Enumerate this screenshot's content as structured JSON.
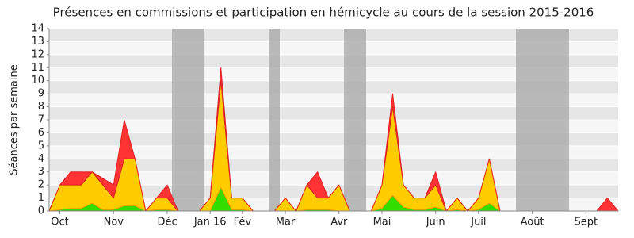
{
  "chart_data": {
    "type": "area",
    "stacked": true,
    "title": "Présences en commissions et participation en hémicycle au cours de la session 2015-2016",
    "ylabel": "Séances par semaine",
    "categories": [
      null,
      "Oct",
      null,
      null,
      null,
      null,
      "Nov",
      null,
      null,
      null,
      null,
      "Déc",
      null,
      null,
      null,
      "Jan 16",
      null,
      null,
      "Fév",
      null,
      null,
      null,
      "Mar",
      null,
      null,
      null,
      null,
      "Avr",
      null,
      null,
      null,
      "Mai",
      null,
      null,
      null,
      null,
      "Juin",
      null,
      null,
      null,
      "Juil",
      null,
      null,
      null,
      null,
      "Août",
      null,
      null,
      null,
      null,
      "Sept",
      null,
      null,
      null
    ],
    "series": [
      {
        "color": "#33dd00",
        "values": [
          0,
          0.1,
          0.2,
          0.2,
          0.6,
          0.1,
          0.1,
          0.4,
          0.4,
          0,
          0.1,
          0.1,
          0,
          0,
          0,
          0,
          1.8,
          0.1,
          0.1,
          0,
          0,
          0,
          0,
          0,
          0.1,
          0.1,
          0.1,
          0,
          0,
          0,
          0,
          0.2,
          1.2,
          0.3,
          0.1,
          0.1,
          0.3,
          0,
          0.1,
          0,
          0.1,
          0.6,
          0,
          0,
          0,
          0,
          0,
          0,
          0,
          0,
          0,
          0,
          0,
          0
        ]
      },
      {
        "color": "#ffcc00",
        "values": [
          0,
          1.9,
          1.8,
          1.8,
          2.4,
          1.9,
          0.9,
          3.6,
          3.6,
          0,
          0.9,
          0.9,
          0,
          0,
          0,
          1,
          8.2,
          0.9,
          0.9,
          0,
          0,
          0,
          1,
          0,
          1.9,
          0.9,
          0.9,
          2,
          0,
          0,
          0,
          1.8,
          6.8,
          1.7,
          0.9,
          0.9,
          1.7,
          0,
          0.9,
          0,
          0.9,
          3.4,
          0,
          0,
          0,
          0,
          0,
          0,
          0,
          0,
          0,
          0,
          0,
          0
        ]
      },
      {
        "color": "#ff3333",
        "values": [
          0,
          0,
          1,
          1,
          0,
          0.5,
          1,
          3,
          0,
          0,
          0,
          1,
          0,
          0,
          0,
          0,
          1,
          0,
          0,
          0,
          0,
          0,
          0,
          0,
          0,
          2,
          0,
          0,
          0,
          0,
          0,
          0,
          1,
          0,
          0,
          0,
          1,
          0,
          0,
          0,
          0,
          0,
          0,
          0,
          0,
          0,
          0,
          0,
          0,
          0,
          0,
          0,
          1,
          0
        ]
      }
    ],
    "ylim": [
      0,
      14
    ],
    "yticks": [
      0,
      1,
      2,
      3,
      4,
      5,
      6,
      7,
      8,
      9,
      10,
      11,
      12,
      13,
      14
    ],
    "grid": true
  }
}
